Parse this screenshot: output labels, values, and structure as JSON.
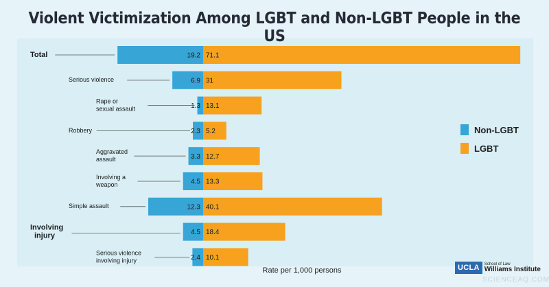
{
  "title": "Violent Victimization Among LGBT and Non-LGBT People in the US",
  "xlabel": "Rate per 1,000 persons",
  "logo": {
    "box": "UCLA",
    "school": "School of Law",
    "institute": "Williams Institute"
  },
  "watermark": "SCIENCEAQ.COM",
  "colors": {
    "non_lgbt": "#37a5d6",
    "lgbt": "#f7a11e",
    "background": "#e6f3f8"
  },
  "chart_data": {
    "type": "bar",
    "orientation": "horizontal",
    "stacked_diverging": true,
    "title": "Violent Victimization Among LGBT and Non-LGBT People in the US",
    "xlabel": "Rate per 1,000 persons",
    "legend_position": "right",
    "categories": [
      [
        "Total"
      ],
      [
        "Serious violence"
      ],
      [
        "Rape or",
        "sexual assault"
      ],
      [
        "Robbery"
      ],
      [
        "Aggravated",
        "assault"
      ],
      [
        "Involving a",
        "weapon"
      ],
      [
        "Simple assault"
      ],
      [
        "Involving",
        "injury"
      ],
      [
        "Serious violence",
        "involving injury"
      ]
    ],
    "category_emphasis": [
      true,
      false,
      false,
      false,
      false,
      false,
      false,
      true,
      false
    ],
    "series": [
      {
        "name": "Non-LGBT",
        "values": [
          19.2,
          6.9,
          1.3,
          2.3,
          3.3,
          4.5,
          12.3,
          4.5,
          2.4
        ]
      },
      {
        "name": "LGBT",
        "values": [
          71.1,
          31,
          13.1,
          5.2,
          12.7,
          13.3,
          40.1,
          18.4,
          10.1
        ]
      }
    ],
    "value_labels": {
      "Non-LGBT": [
        "19.2",
        "6.9",
        "1.3",
        "2.3",
        "3.3",
        "4.5",
        "12.3",
        "4.5",
        "2.4"
      ],
      "LGBT": [
        "71.1",
        "31",
        "13.1",
        "5.2",
        "12.7",
        "13.3",
        "40.1",
        "18.4",
        "10.1"
      ]
    }
  }
}
